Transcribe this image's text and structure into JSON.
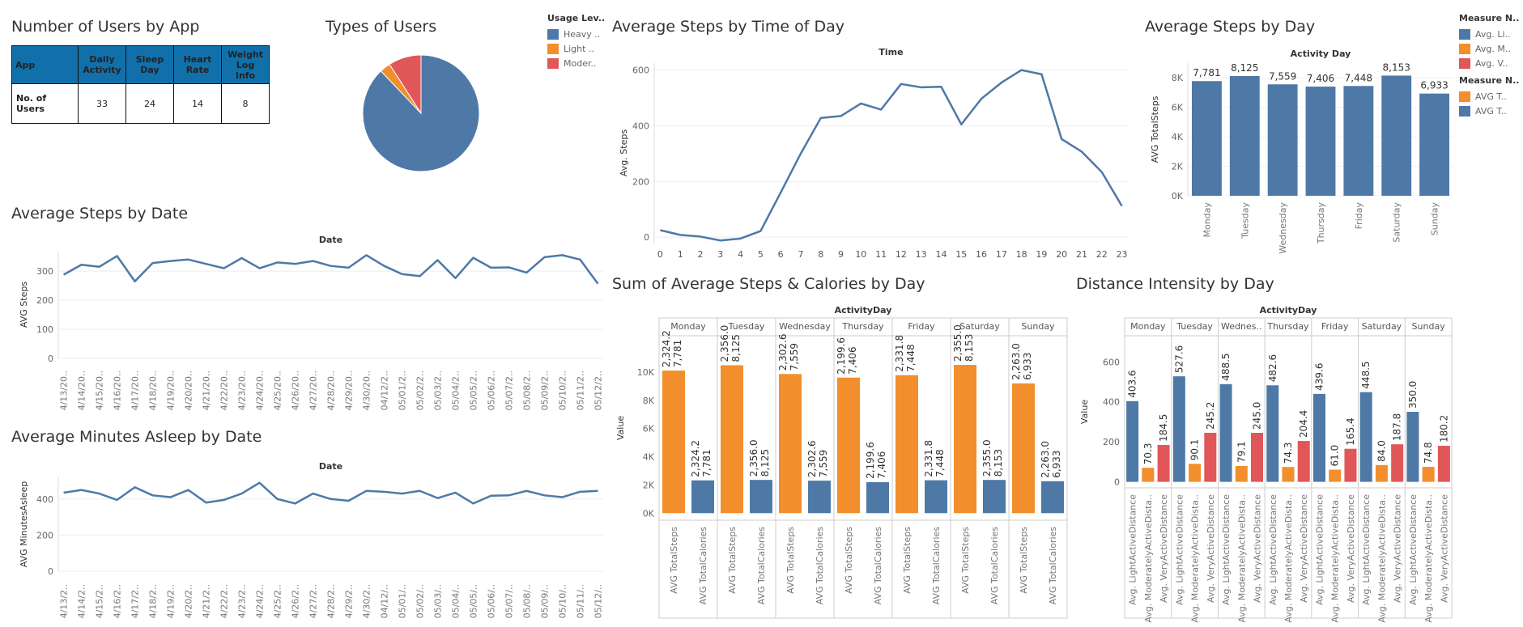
{
  "titles": {
    "users_by_app": "Number of Users by App",
    "types_of_users": "Types of Users",
    "steps_by_time": "Average Steps by Time of Day",
    "steps_by_day": "Average Steps by Day",
    "steps_by_date": "Average Steps by Date",
    "sleep_by_date": "Average Minutes Asleep by Date",
    "steps_calories": "Sum of Average Steps & Calories by Day",
    "distance_intensity": "Distance Intensity by Day"
  },
  "app_table": {
    "row_header": "App",
    "columns": [
      "Daily Activity",
      "Sleep Day",
      "Heart Rate",
      "Weight Log Info"
    ],
    "row_label": "No. of Users",
    "values": [
      "33",
      "24",
      "14",
      "8"
    ]
  },
  "legends": {
    "usage": {
      "title": "Usage Lev..",
      "items": [
        {
          "label": "Heavy ..",
          "color": "#4e79a7"
        },
        {
          "label": "Light ..",
          "color": "#f28e2b"
        },
        {
          "label": "Moder..",
          "color": "#e15759"
        }
      ]
    },
    "measure1": {
      "title": "Measure N..",
      "items": [
        {
          "label": "Avg. Li..",
          "color": "#4e79a7"
        },
        {
          "label": "Avg. M..",
          "color": "#f28e2b"
        },
        {
          "label": "Avg. V..",
          "color": "#e15759"
        }
      ]
    },
    "measure2": {
      "title": "Measure N..",
      "items": [
        {
          "label": "AVG T..",
          "color": "#f28e2b"
        },
        {
          "label": "AVG T..",
          "color": "#4e79a7"
        }
      ]
    }
  },
  "chart_data": [
    {
      "id": "pie",
      "type": "pie",
      "categories": [
        "Heavy ..",
        "Light ..",
        "Moder.."
      ],
      "values": [
        87.9,
        3.0,
        9.1
      ],
      "colors": [
        "#4e79a7",
        "#f28e2b",
        "#e15759"
      ]
    },
    {
      "id": "time",
      "type": "line",
      "title": "Time",
      "ylabel": "Avg. Steps",
      "x": [
        "0",
        "1",
        "2",
        "3",
        "4",
        "5",
        "6",
        "7",
        "8",
        "9",
        "10",
        "11",
        "12",
        "13",
        "14",
        "15",
        "16",
        "17",
        "18",
        "19",
        "20",
        "21",
        "22",
        "23"
      ],
      "values": [
        25,
        8,
        2,
        -12,
        -5,
        22,
        160,
        300,
        428,
        435,
        480,
        458,
        550,
        538,
        540,
        405,
        497,
        555,
        600,
        585,
        352,
        307,
        234,
        112
      ],
      "yticks": [
        0,
        200,
        400,
        600
      ],
      "ylim": [
        -20,
        625
      ],
      "color": "#4e79a7"
    },
    {
      "id": "day",
      "type": "bar",
      "title": "Activity Day",
      "ylabel": "AVG TotalSteps",
      "categories": [
        "Monday",
        "Tuesday",
        "Wednesday",
        "Thursday",
        "Friday",
        "Saturday",
        "Sunday"
      ],
      "values": [
        7781,
        8125,
        7559,
        7406,
        7448,
        8153,
        6933
      ],
      "labels": [
        "7,781",
        "8,125",
        "7,559",
        "7,406",
        "7,448",
        "8,153",
        "6,933"
      ],
      "yticks": [
        0,
        2000,
        4000,
        6000,
        8000
      ],
      "ytick_labels": [
        "0K",
        "2K",
        "4K",
        "6K",
        "8K"
      ],
      "ylim": [
        0,
        9000
      ],
      "color": "#4e79a7"
    },
    {
      "id": "date",
      "type": "line",
      "title": "Date",
      "ylabel": "AVG Steps",
      "x": [
        "4/13/20..",
        "4/14/20..",
        "4/15/20..",
        "4/16/20..",
        "4/17/20..",
        "4/18/20..",
        "4/19/20..",
        "4/20/20..",
        "4/21/20..",
        "4/22/20..",
        "4/23/20..",
        "4/24/20..",
        "4/25/20..",
        "4/26/20..",
        "4/27/20..",
        "4/28/20..",
        "4/29/20..",
        "4/30/20..",
        "04/12/2..",
        "05/01/2..",
        "05/02/2..",
        "05/03/2..",
        "05/04/2..",
        "05/05/2..",
        "05/06/2..",
        "05/07/2..",
        "05/08/2..",
        "05/09/2..",
        "05/10/2..",
        "05/11/2..",
        "05/12/2.."
      ],
      "values": [
        288,
        322,
        315,
        352,
        265,
        328,
        335,
        340,
        325,
        310,
        345,
        310,
        330,
        325,
        335,
        318,
        312,
        355,
        318,
        290,
        283,
        338,
        276,
        346,
        312,
        313,
        295,
        348,
        355,
        340,
        257
      ],
      "yticks": [
        0,
        100,
        200,
        300
      ],
      "ylim": [
        0,
        370
      ],
      "color": "#4e79a7"
    },
    {
      "id": "sleep",
      "type": "line",
      "title": "Date",
      "ylabel": "AVG MinutesAsleep",
      "x": [
        "4/13/2..",
        "4/14/2..",
        "4/15/2..",
        "4/16/2..",
        "4/17/2..",
        "4/18/2..",
        "4/19/2..",
        "4/20/2..",
        "4/21/2..",
        "4/22/2..",
        "4/23/2..",
        "4/24/2..",
        "4/25/2..",
        "4/26/2..",
        "4/27/2..",
        "4/28/2..",
        "4/29/2..",
        "4/30/2..",
        "04/12/..",
        "05/01/..",
        "05/02/..",
        "05/03/..",
        "05/04/..",
        "05/05/..",
        "05/06/..",
        "05/07/..",
        "05/08/..",
        "05/09/..",
        "05/10/..",
        "05/11/..",
        "05/12/.."
      ],
      "values": [
        435,
        450,
        430,
        395,
        465,
        420,
        410,
        450,
        380,
        395,
        430,
        490,
        400,
        375,
        430,
        400,
        390,
        445,
        440,
        430,
        445,
        405,
        435,
        375,
        418,
        420,
        445,
        420,
        410,
        440,
        445
      ],
      "yticks": [
        0,
        200,
        400
      ],
      "ylim": [
        0,
        520
      ],
      "color": "#4e79a7"
    },
    {
      "id": "stepscal",
      "type": "bar",
      "title": "ActivityDay",
      "ylabel": "Value",
      "days": [
        "Monday",
        "Tuesday",
        "Wednesday",
        "Thursday",
        "Friday",
        "Saturday",
        "Sunday"
      ],
      "bar_labels": [
        "AVG TotalSteps",
        "AVG TotalCalories"
      ],
      "series": [
        {
          "color": "#f28e2b",
          "values": [
            10105,
            10481,
            9862,
            9606,
            9780,
            10508,
            9196
          ],
          "labels": [
            [
              "2,324.2",
              "7,781"
            ],
            [
              "2,356.0",
              "8,125"
            ],
            [
              "2,302.6",
              "7,559"
            ],
            [
              "2,199.6",
              "7,406"
            ],
            [
              "2,331.8",
              "7,448"
            ],
            [
              "2,355.0",
              "8,153"
            ],
            [
              "2,263.0",
              "6,933"
            ]
          ]
        },
        {
          "color": "#4e79a7",
          "values": [
            2324.2,
            2356.0,
            2302.6,
            2199.6,
            2331.8,
            2355.0,
            2263.0
          ],
          "labels": [
            [
              "2,324.2",
              "7,781"
            ],
            [
              "2,356.0",
              "8,125"
            ],
            [
              "2,302.6",
              "7,559"
            ],
            [
              "2,199.6",
              "7,406"
            ],
            [
              "2,331.8",
              "7,448"
            ],
            [
              "2,355.0",
              "8,153"
            ],
            [
              "2,263.0",
              "6,933"
            ]
          ]
        }
      ],
      "yticks": [
        0,
        2000,
        4000,
        6000,
        8000,
        10000
      ],
      "ytick_labels": [
        "0K",
        "2K",
        "4K",
        "6K",
        "8K",
        "10K"
      ],
      "ylim": [
        -500,
        12000
      ]
    },
    {
      "id": "distance",
      "type": "bar",
      "title": "ActivityDay",
      "ylabel": "Value",
      "days": [
        "Monday",
        "Tuesday",
        "Wednes..",
        "Thursday",
        "Friday",
        "Saturday",
        "Sunday"
      ],
      "bar_labels": [
        "Avg. LightActiveDistance",
        "Avg. ModeratelyActiveDista..",
        "Avg. VeryActiveDistance"
      ],
      "series": [
        {
          "color": "#4e79a7",
          "values": [
            403.6,
            527.6,
            488.5,
            482.6,
            439.6,
            448.5,
            350.0
          ],
          "labels": [
            "403.6",
            "527.6",
            "488.5",
            "482.6",
            "439.6",
            "448.5",
            "350.0"
          ]
        },
        {
          "color": "#f28e2b",
          "values": [
            70.3,
            90.1,
            79.1,
            74.3,
            61.0,
            84.0,
            74.8
          ],
          "labels": [
            "70.3",
            "90.1",
            "79.1",
            "74.3",
            "61.0",
            "84.0",
            "74.8"
          ]
        },
        {
          "color": "#e15759",
          "values": [
            184.5,
            245.2,
            245.0,
            204.4,
            165.4,
            187.8,
            180.2
          ],
          "labels": [
            "184.5",
            "245.2",
            "245.0",
            "204.4",
            "165.4",
            "187.8",
            "180.2"
          ]
        }
      ],
      "yticks": [
        0,
        200,
        400,
        600
      ],
      "ylim": [
        -30,
        690
      ]
    }
  ]
}
